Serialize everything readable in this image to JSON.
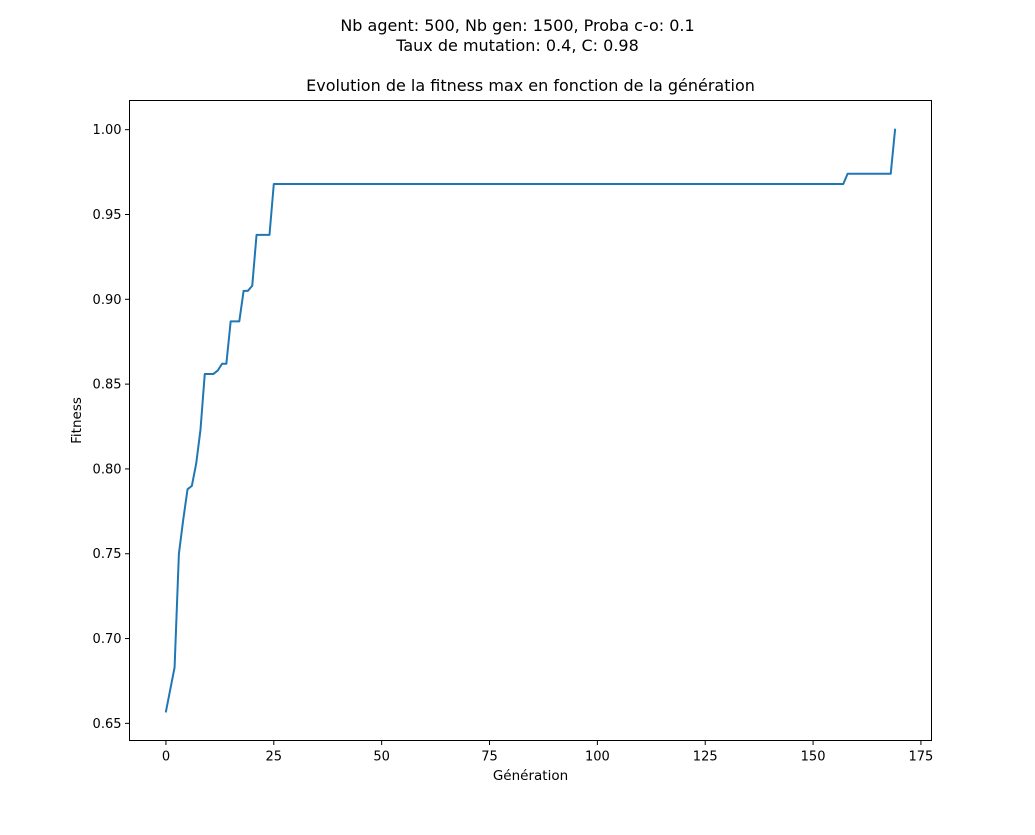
{
  "figure": {
    "suptitle_line1": "Nb agent: 500, Nb gen: 1500, Proba c-o: 0.1",
    "suptitle_line2": "Taux de mutation: 0.4, C: 0.98"
  },
  "chart_data": {
    "type": "line",
    "title": "Evolution de la fitness max en fonction de la génération",
    "xlabel": "Génération",
    "ylabel": "Fitness",
    "xlim": [
      -8.45,
      177.45
    ],
    "ylim": [
      0.6399,
      1.0172
    ],
    "x_ticks": [
      0,
      25,
      50,
      75,
      100,
      125,
      150,
      175
    ],
    "y_ticks": [
      0.65,
      0.7,
      0.75,
      0.8,
      0.85,
      0.9,
      0.95,
      1.0
    ],
    "grid": false,
    "legend": "none",
    "series": [
      {
        "color": "#1f77b4",
        "points": [
          [
            0,
            0.657
          ],
          [
            1,
            0.67
          ],
          [
            2,
            0.683
          ],
          [
            3,
            0.75
          ],
          [
            4,
            0.77
          ],
          [
            5,
            0.788
          ],
          [
            6,
            0.79
          ],
          [
            7,
            0.803
          ],
          [
            8,
            0.823
          ],
          [
            9,
            0.856
          ],
          [
            10,
            0.856
          ],
          [
            11,
            0.856
          ],
          [
            12,
            0.858
          ],
          [
            13,
            0.862
          ],
          [
            14,
            0.862
          ],
          [
            15,
            0.887
          ],
          [
            16,
            0.887
          ],
          [
            17,
            0.887
          ],
          [
            18,
            0.905
          ],
          [
            19,
            0.905
          ],
          [
            20,
            0.908
          ],
          [
            21,
            0.938
          ],
          [
            22,
            0.938
          ],
          [
            23,
            0.938
          ],
          [
            24,
            0.938
          ],
          [
            25,
            0.968
          ],
          [
            157,
            0.968
          ],
          [
            158,
            0.974
          ],
          [
            168,
            0.974
          ],
          [
            169,
            1.0
          ]
        ]
      }
    ]
  }
}
